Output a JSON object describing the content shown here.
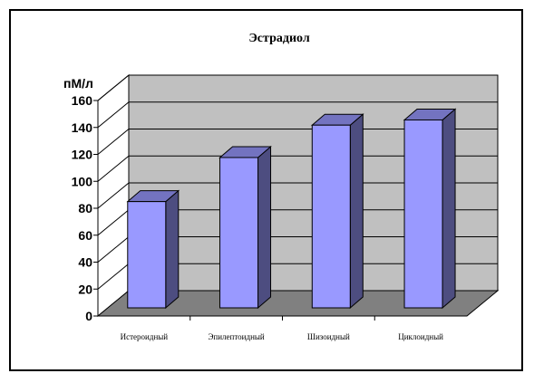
{
  "chart_data": {
    "type": "bar",
    "title": "Эстрадиол",
    "ylabel": "пМ/л",
    "xlabel": "",
    "categories": [
      "Истероидный",
      "Эпилептоидный",
      "Шизоидный",
      "Циклоидный"
    ],
    "values": [
      82,
      116,
      141,
      145
    ],
    "ylim": [
      0,
      160
    ],
    "yticks": [
      0,
      20,
      40,
      60,
      80,
      100,
      120,
      140,
      160
    ],
    "grid": true,
    "legend": "none",
    "colors": {
      "bar_front": "#9999ff",
      "bar_side": "#4d4d80",
      "bar_top": "#7373c0",
      "back_wall": "#c0c0c0",
      "side_wall": "#ffffff",
      "floor": "#808080",
      "gridline": "#000000"
    }
  }
}
